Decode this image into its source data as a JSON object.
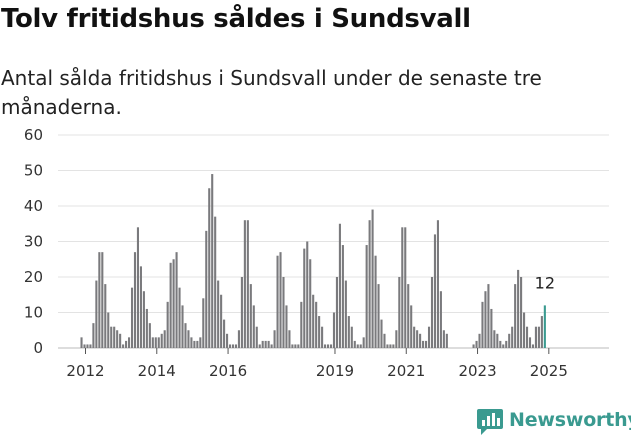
{
  "title": "Tolv fritidshus såldes i Sundsvall",
  "subtitle": "Antal sålda fritidshus i Sundsvall under de senaste tre månaderna.",
  "brand": {
    "name": "Newsworthy",
    "color": "#3a9a90"
  },
  "chart_data": {
    "type": "bar",
    "title": "Tolv fritidshus såldes i Sundsvall",
    "subtitle": "Antal sålda fritidshus i Sundsvall under de senaste tre månaderna.",
    "xlabel": "",
    "ylabel": "",
    "ylim": [
      0,
      60
    ],
    "yticks": [
      0,
      10,
      20,
      30,
      40,
      50,
      60
    ],
    "xtick_labels": [
      "2012",
      "2014",
      "2016",
      "2019",
      "2021",
      "2023",
      "2025"
    ],
    "grid": true,
    "bar_color": "#7a7a7d",
    "highlight_color": "#3a9a90",
    "highlight_label": "12",
    "series": [
      {
        "name": "",
        "segments": [
          {
            "start": "2011-12",
            "values": [
              3,
              1,
              1,
              1,
              7,
              19,
              27,
              27,
              18,
              10,
              6,
              6,
              5,
              4,
              1,
              2,
              3,
              17,
              27,
              34,
              23,
              16,
              11,
              7,
              3,
              3,
              3,
              4,
              5,
              13,
              24,
              25,
              27,
              17,
              12,
              7,
              5,
              3,
              2,
              2,
              3,
              14,
              33,
              45,
              49,
              37,
              19,
              15,
              8,
              4,
              1,
              1,
              1,
              5,
              20,
              36,
              36,
              18,
              12,
              6,
              1,
              2,
              2,
              2,
              1,
              5,
              26,
              27,
              20,
              12,
              5,
              1,
              1
            ]
          },
          {
            "start": "2018-01",
            "values": [
              1,
              13,
              28,
              30,
              25,
              15,
              13,
              9,
              6,
              1,
              1,
              1,
              10,
              20,
              35,
              29,
              19,
              9,
              6,
              2,
              1,
              1,
              3,
              29,
              36,
              39,
              26,
              18,
              8,
              4,
              1,
              1,
              1,
              5,
              20,
              34,
              34,
              18,
              12,
              6,
              5,
              4,
              2,
              2,
              6,
              20,
              32,
              36,
              16,
              5,
              4
            ]
          },
          {
            "start": "2022-12",
            "values": [
              1,
              2,
              4,
              13,
              16,
              18,
              11,
              5,
              4,
              2,
              1,
              2,
              4,
              6,
              18,
              22,
              20,
              10,
              6,
              3,
              1,
              6,
              6,
              9,
              12
            ]
          }
        ]
      }
    ]
  }
}
